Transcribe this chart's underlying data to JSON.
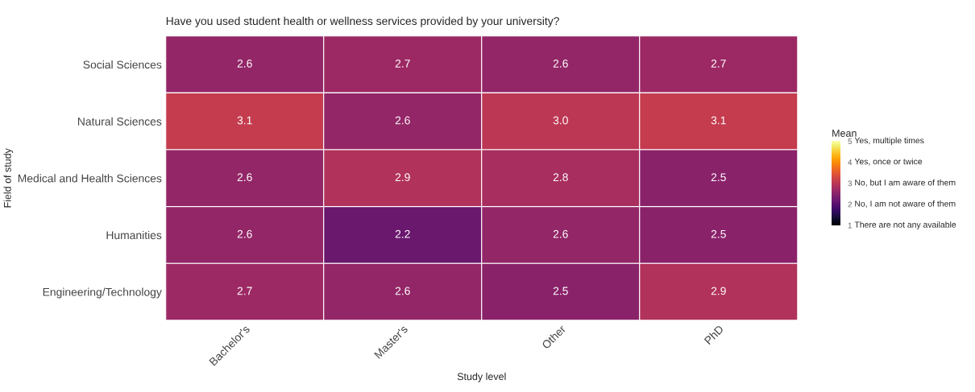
{
  "chart_data": {
    "type": "heatmap",
    "title": "Have you used student health or wellness services provided by your university?",
    "xlabel": "Study level",
    "ylabel": "Field of study",
    "clabel": "Mean",
    "categories": [
      "Bachelor's",
      "Master's",
      "Other",
      "PhD"
    ],
    "y_categories": [
      "Social Sciences",
      "Natural Sciences",
      "Medical and Health Sciences",
      "Humanities",
      "Engineering/Technology"
    ],
    "cells": [
      [
        2.6,
        2.7,
        2.6,
        2.7
      ],
      [
        3.1,
        2.6,
        3.0,
        3.1
      ],
      [
        2.6,
        2.9,
        2.8,
        2.5
      ],
      [
        2.6,
        2.2,
        2.6,
        2.5
      ],
      [
        2.7,
        2.6,
        2.5,
        2.9
      ]
    ],
    "cell_labels": [
      [
        "2.6",
        "2.7",
        "2.6",
        "2.7"
      ],
      [
        "3.1",
        "2.6",
        "3.0",
        "3.1"
      ],
      [
        "2.6",
        "2.9",
        "2.8",
        "2.5"
      ],
      [
        "2.6",
        "2.2",
        "2.6",
        "2.5"
      ],
      [
        "2.7",
        "2.6",
        "2.5",
        "2.9"
      ]
    ],
    "clim": [
      1,
      5
    ],
    "cticks": [
      1,
      2,
      3,
      4,
      5
    ],
    "annotations": [
      "There are not any available",
      "No, I am not aware of them",
      "No, but I am aware of them",
      "Yes, once or twice",
      "Yes, multiple times"
    ]
  }
}
